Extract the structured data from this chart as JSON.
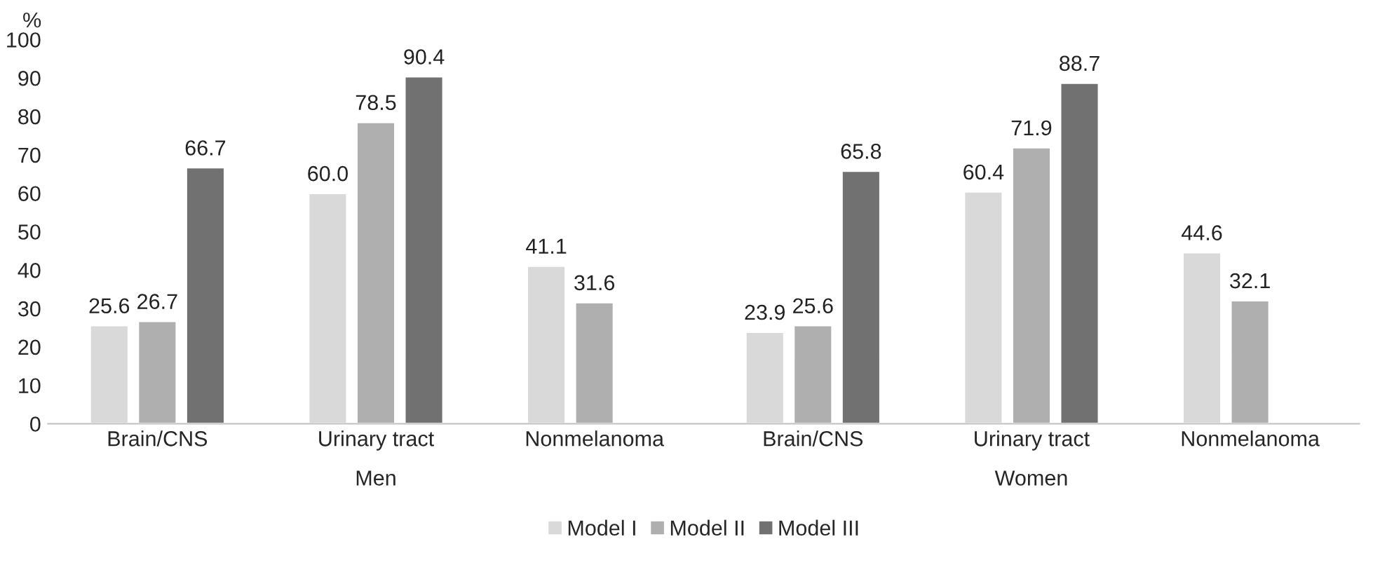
{
  "chart_data": {
    "type": "bar",
    "ylabel": "%",
    "categories": [
      "Brain/CNS",
      "Urinary tract",
      "Nonmelanoma",
      "Brain/CNS",
      "Urinary tract",
      "Nonmelanoma"
    ],
    "series": [
      {
        "name": "Model I",
        "color": "#d9d9d9",
        "values": [
          25.6,
          60.0,
          41.1,
          23.9,
          60.4,
          44.6
        ],
        "value_labels": [
          "25.6",
          "60.0",
          "41.1",
          "23.9",
          "60.4",
          "44.6"
        ]
      },
      {
        "name": "Model II",
        "color": "#afafaf",
        "values": [
          26.7,
          78.5,
          31.6,
          25.6,
          71.9,
          32.1
        ],
        "value_labels": [
          "26.7",
          "78.5",
          "31.6",
          "25.6",
          "71.9",
          "32.1"
        ]
      },
      {
        "name": "Model III",
        "color": "#717171",
        "values": [
          66.7,
          90.4,
          null,
          65.8,
          88.7,
          null
        ],
        "value_labels": [
          "66.7",
          "90.4",
          null,
          "65.8",
          "88.7",
          null
        ]
      }
    ],
    "annotations": [
      "Men",
      "Women"
    ],
    "ylim": [
      0,
      100
    ],
    "yticks": [
      0,
      10,
      20,
      30,
      40,
      50,
      60,
      70,
      80,
      90,
      100
    ],
    "grid": false,
    "legend": "bottom"
  }
}
